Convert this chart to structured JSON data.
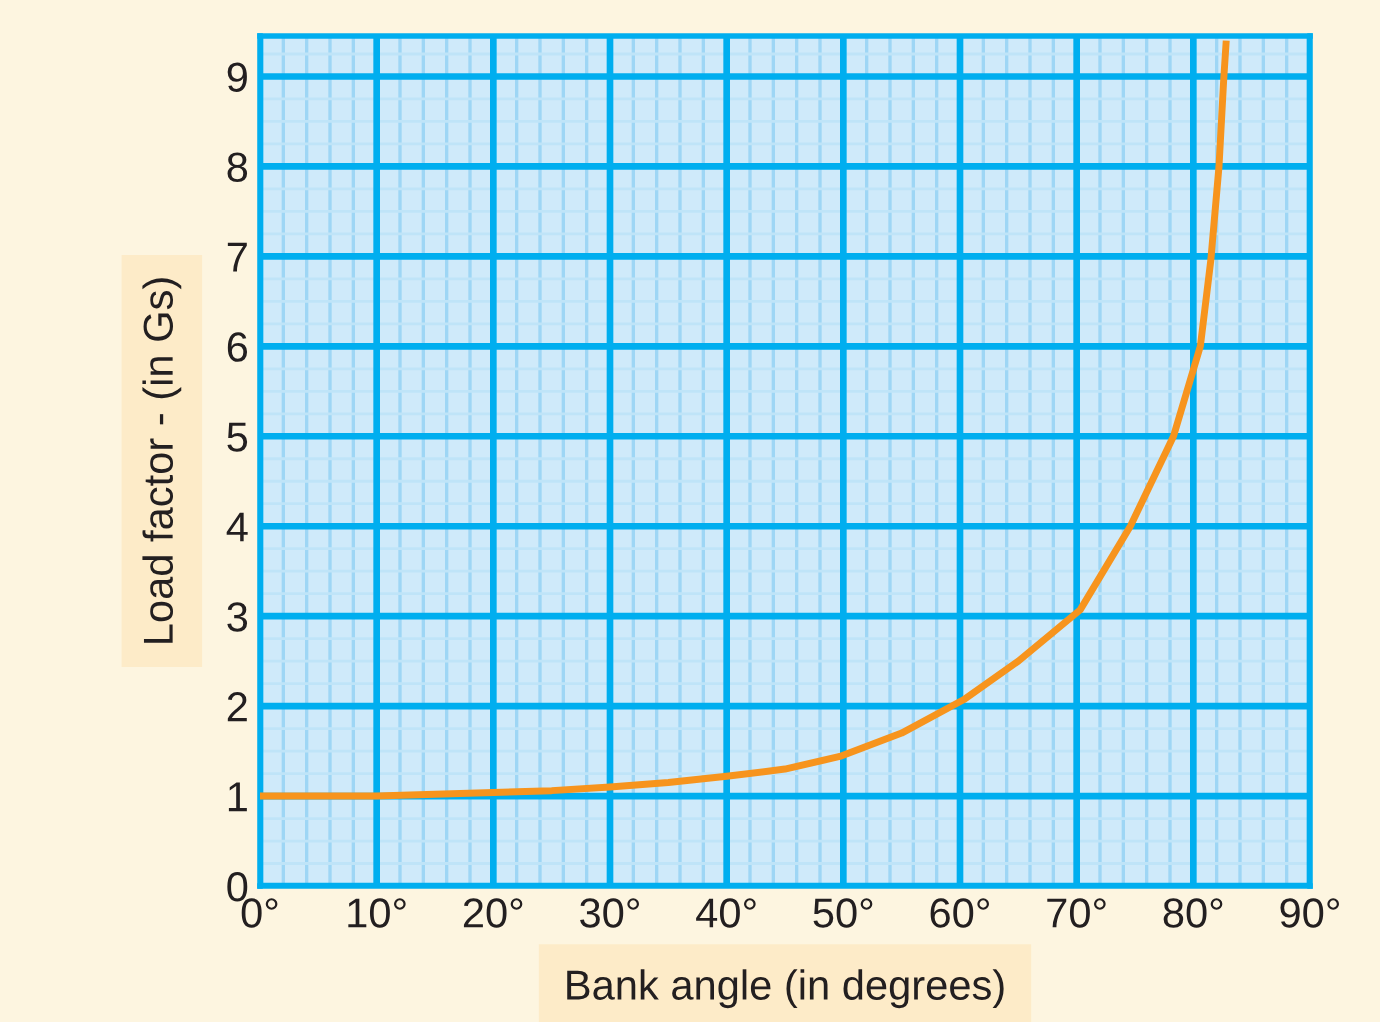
{
  "chart_data": {
    "type": "line",
    "xlabel": "Bank angle (in degrees)",
    "ylabel": "Load factor - (in Gs)",
    "x": [
      0,
      10,
      20,
      25,
      30,
      35,
      40,
      45,
      49.7,
      55,
      60.3,
      65,
      70.3,
      74.6,
      78.3,
      80.6,
      81.5,
      82.2,
      82.6,
      82.8
    ],
    "series": [
      {
        "color": "#f7941d",
        "values": [
          1.0,
          1.0,
          1.04,
          1.06,
          1.1,
          1.15,
          1.22,
          1.3,
          1.44,
          1.7,
          2.07,
          2.5,
          3.07,
          4.0,
          5.0,
          6.0,
          6.96,
          8.0,
          8.96,
          9.36
        ]
      }
    ],
    "xlim": [
      0,
      90
    ],
    "ylim": [
      0,
      9.45
    ],
    "xticks": [
      {
        "value": 0,
        "label": "0°"
      },
      {
        "value": 2,
        "label": null
      },
      {
        "value": 4,
        "label": null
      },
      {
        "value": 6,
        "label": null
      },
      {
        "value": 8,
        "label": null
      },
      {
        "value": 10,
        "label": "10°"
      },
      {
        "value": 12,
        "label": null
      },
      {
        "value": 14,
        "label": null
      },
      {
        "value": 16,
        "label": null
      },
      {
        "value": 18,
        "label": null
      },
      {
        "value": 20,
        "label": "20°"
      },
      {
        "value": 22,
        "label": null
      },
      {
        "value": 24,
        "label": null
      },
      {
        "value": 26,
        "label": null
      },
      {
        "value": 28,
        "label": null
      },
      {
        "value": 30,
        "label": "30°"
      },
      {
        "value": 32,
        "label": null
      },
      {
        "value": 34,
        "label": null
      },
      {
        "value": 36,
        "label": null
      },
      {
        "value": 38,
        "label": null
      },
      {
        "value": 40,
        "label": "40°"
      },
      {
        "value": 42,
        "label": null
      },
      {
        "value": 44,
        "label": null
      },
      {
        "value": 46,
        "label": null
      },
      {
        "value": 48,
        "label": null
      },
      {
        "value": 50,
        "label": "50°"
      },
      {
        "value": 52,
        "label": null
      },
      {
        "value": 54,
        "label": null
      },
      {
        "value": 56,
        "label": null
      },
      {
        "value": 58,
        "label": null
      },
      {
        "value": 60,
        "label": "60°"
      },
      {
        "value": 62,
        "label": null
      },
      {
        "value": 64,
        "label": null
      },
      {
        "value": 66,
        "label": null
      },
      {
        "value": 68,
        "label": null
      },
      {
        "value": 70,
        "label": "70°"
      },
      {
        "value": 72,
        "label": null
      },
      {
        "value": 74,
        "label": null
      },
      {
        "value": 76,
        "label": null
      },
      {
        "value": 78,
        "label": null
      },
      {
        "value": 80,
        "label": "80°"
      },
      {
        "value": 82,
        "label": null
      },
      {
        "value": 84,
        "label": null
      },
      {
        "value": 86,
        "label": null
      },
      {
        "value": 88,
        "label": null
      },
      {
        "value": 90,
        "label": "90°"
      }
    ],
    "yticks": [
      0,
      {
        "value": 0.25,
        "label": null
      },
      {
        "value": 0.5,
        "label": null
      },
      {
        "value": 0.75,
        "label": null
      },
      1,
      {
        "value": 1.25,
        "label": null
      },
      {
        "value": 1.5,
        "label": null
      },
      {
        "value": 1.75,
        "label": null
      },
      2,
      {
        "value": 2.25,
        "label": null
      },
      {
        "value": 2.5,
        "label": null
      },
      {
        "value": 2.75,
        "label": null
      },
      3,
      {
        "value": 3.25,
        "label": null
      },
      {
        "value": 3.5,
        "label": null
      },
      {
        "value": 3.75,
        "label": null
      },
      4,
      {
        "value": 4.25,
        "label": null
      },
      {
        "value": 4.5,
        "label": null
      },
      {
        "value": 4.75,
        "label": null
      },
      5,
      {
        "value": 5.25,
        "label": null
      },
      {
        "value": 5.5,
        "label": null
      },
      {
        "value": 5.75,
        "label": null
      },
      6,
      {
        "value": 6.25,
        "label": null
      },
      {
        "value": 6.5,
        "label": null
      },
      {
        "value": 6.75,
        "label": null
      },
      7,
      {
        "value": 7.25,
        "label": null
      },
      {
        "value": 7.5,
        "label": null
      },
      {
        "value": 7.75,
        "label": null
      },
      8,
      {
        "value": 8.25,
        "label": null
      },
      {
        "value": 8.5,
        "label": null
      },
      {
        "value": 8.75,
        "label": null
      },
      9,
      {
        "value": 9.25,
        "label": null
      }
    ],
    "grid": true,
    "marker": "none",
    "line_style": "solid"
  }
}
